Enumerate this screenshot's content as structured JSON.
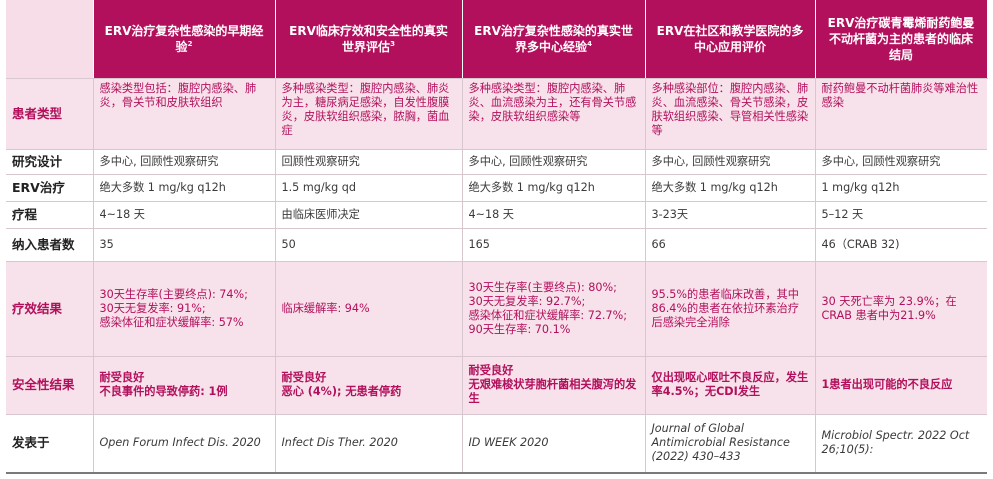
{
  "headers": {
    "col1": "ERV治疗复杂性感染的早期经验",
    "col1_sup": "2",
    "col2": "ERV临床疗效和安全性的真实世界评估",
    "col2_sup": "3",
    "col3": "ERV治疗复杂性感染的真实世界多中心经验",
    "col3_sup": "4",
    "col4": "ERV在社区和教学医院的多中心应用评价",
    "col5": "ERV治疗碳青霉烯耐药鲍曼不动杆菌为主的患者的临床结局"
  },
  "rows": {
    "patient_type": {
      "label": "患者类型",
      "c1": "感染类型包括：腹腔内感染、肺炎，骨关节和皮肤软组织",
      "c2": "多种感染类型：腹腔内感染、肺炎为主，糖尿病足感染，自发性腹膜炎，皮肤软组织感染，脓胸，菌血症",
      "c3": "多种感染类型：腹腔内感染、肺炎、血流感染为主，还有骨关节感染，皮肤软组织感染等",
      "c4": "多种感染部位：腹腔内感染、肺炎、血流感染、骨关节感染，皮肤软组织感染、导管相关性感染等",
      "c5": "耐药鲍曼不动杆菌肺炎等难治性感染"
    },
    "design": {
      "label": "研究设计",
      "c1": "多中心, 回顾性观察研究",
      "c2": "回顾性观察研究",
      "c3": "多中心, 回顾性观察研究",
      "c4": "多中心, 回顾性观察研究",
      "c5": "多中心, 回顾性观察研究"
    },
    "erv": {
      "label": "ERV治疗",
      "c1": "绝大多数 1 mg/kg q12h",
      "c2": "1.5 mg/kg qd",
      "c3": "绝大多数 1 mg/kg q12h",
      "c4": "绝大多数 1 mg/kg q12h",
      "c5": "1 mg/kg q12h"
    },
    "course": {
      "label": "疗程",
      "c1": "4~18 天",
      "c2": "由临床医师决定",
      "c3": "4~18 天",
      "c4": "3-23天",
      "c5": "5–12 天"
    },
    "enrolled": {
      "label": "纳入患者数",
      "c1": "35",
      "c2": "50",
      "c3": "165",
      "c4": "66",
      "c5": "46（CRAB 32)"
    },
    "efficacy": {
      "label": "疗效结果",
      "c1_l1": "30天生存率(主要终点): 74%;",
      "c1_l2": "30天无复发率: 91%;",
      "c1_l3": "感染体征和症状缓解率: 57%",
      "c2": "临床缓解率: 94%",
      "c3_l1": "30天生存率(主要终点): 80%;",
      "c3_l2": "30天无复发率: 92.7%;",
      "c3_l3": "感染体征和症状缓解率: 72.7%;",
      "c3_l4": "90天生存率: 70.1%",
      "c4": "95.5%的患者临床改善，其中86.4%的患者在依拉环素治疗后感染完全消除",
      "c5": "30 天死亡率为 23.9%；在 CRAB 患者中为21.9%"
    },
    "safety": {
      "label": "安全性结果",
      "c1_l1": "耐受良好",
      "c1_l2": "不良事件的导致停药: 1例",
      "c2_l1": "耐受良好",
      "c2_l2": "恶心 (4%); 无患者停药",
      "c3_l1": "耐受良好",
      "c3_l2": "无艰难梭状芽胞杆菌相关腹泻的发生",
      "c4": "仅出现呕心呕吐不良反应，发生率4.5%；无CDI发生",
      "c5": "1患者出现可能的不良反应"
    },
    "published": {
      "label": "发表于",
      "c1": "Open Forum Infect Dis. 2020",
      "c2": "Infect Dis Ther. 2020",
      "c3": "ID WEEK 2020",
      "c4": "Journal of Global Antimicrobial Resistance (2022) 430–433",
      "c5": "Microbiol Spectr. 2022 Oct 26;10(5):"
    }
  }
}
